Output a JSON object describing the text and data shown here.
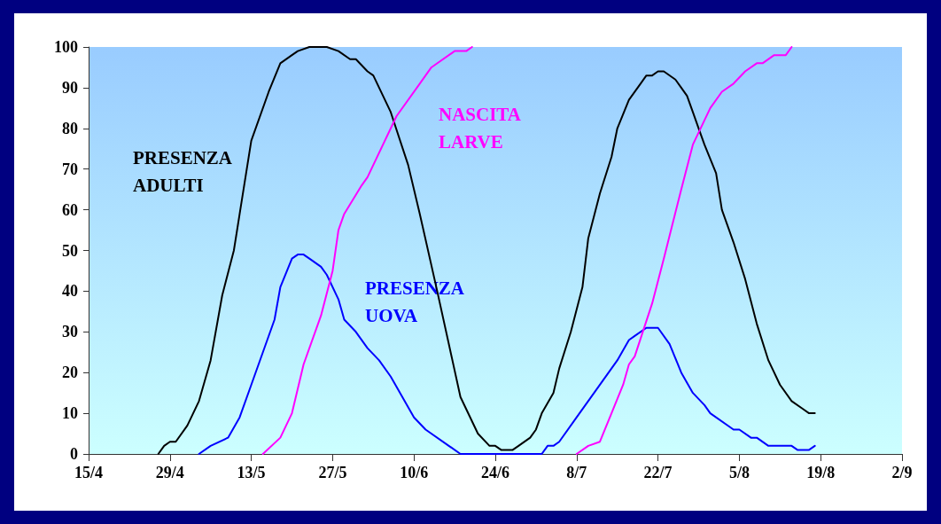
{
  "chart_data": {
    "type": "line",
    "xlim": [
      "--04-15",
      "--09-02"
    ],
    "xticks": [
      {
        "value": "--04-15",
        "label": "15/4"
      },
      {
        "value": "--04-29",
        "label": "29/4"
      },
      {
        "value": "--05-13",
        "label": "13/5"
      },
      {
        "value": "--05-27",
        "label": "27/5"
      },
      {
        "value": "--06-10",
        "label": "10/6"
      },
      {
        "value": "--06-24",
        "label": "24/6"
      },
      {
        "value": "--07-08",
        "label": "8/7"
      },
      {
        "value": "--07-22",
        "label": "22/7"
      },
      {
        "value": "--08-05",
        "label": "5/8"
      },
      {
        "value": "--08-19",
        "label": "19/8"
      },
      {
        "value": "--09-02",
        "label": "2/9"
      }
    ],
    "ylim": [
      0,
      100
    ],
    "yticks": [
      0,
      10,
      20,
      30,
      40,
      50,
      60,
      70,
      80,
      90,
      100
    ],
    "series": [
      {
        "name": "PRESENZA ADULTI",
        "color": "#000000",
        "x": [
          "--04-27",
          "--04-28",
          "--04-29",
          "--04-30",
          "--05-02",
          "--05-04",
          "--05-06",
          "--05-08",
          "--05-10",
          "--05-11",
          "--05-13",
          "--05-16",
          "--05-18",
          "--05-20",
          "--05-21",
          "--05-23",
          "--05-26",
          "--05-28",
          "--05-30",
          "--05-31",
          "--06-02",
          "--06-03",
          "--06-06",
          "--06-09",
          "--06-11",
          "--06-14",
          "--06-16",
          "--06-18",
          "--06-21",
          "--06-23",
          "--06-24",
          "--06-25",
          "--06-27",
          "--06-28",
          "--06-30",
          "--07-01",
          "--07-02",
          "--07-04",
          "--07-05",
          "--07-07",
          "--07-09",
          "--07-10",
          "--07-12",
          "--07-14",
          "--07-15",
          "--07-17",
          "--07-19",
          "--07-20",
          "--07-21",
          "--07-22",
          "--07-23",
          "--07-25",
          "--07-26",
          "--07-27",
          "--07-28",
          "--07-29",
          "--07-30",
          "--08-01",
          "--08-02",
          "--08-04",
          "--08-06",
          "--08-08",
          "--08-10",
          "--08-12",
          "--08-14",
          "--08-16",
          "--08-17",
          "--08-18"
        ],
        "values": [
          0,
          2,
          3,
          3,
          7,
          13,
          23,
          39,
          50,
          59,
          77,
          89,
          96,
          98,
          99,
          100,
          100,
          99,
          97,
          97,
          94,
          93,
          84,
          71,
          59,
          40,
          27,
          14,
          5,
          2,
          2,
          1,
          1,
          2,
          4,
          6,
          10,
          15,
          21,
          30,
          41,
          53,
          64,
          73,
          80,
          87,
          91,
          93,
          93,
          94,
          94,
          92,
          90,
          88,
          84,
          80,
          76,
          69,
          60,
          52,
          43,
          32,
          23,
          17,
          13,
          11,
          10,
          10
        ]
      },
      {
        "name": "PRESENZA UOVA",
        "color": "#0000ff",
        "x": [
          "--05-04",
          "--05-06",
          "--05-09",
          "--05-11",
          "--05-13",
          "--05-15",
          "--05-17",
          "--05-18",
          "--05-20",
          "--05-21",
          "--05-22",
          "--05-23",
          "--05-25",
          "--05-26",
          "--05-28",
          "--05-29",
          "--05-31",
          "--06-02",
          "--06-04",
          "--06-06",
          "--06-08",
          "--06-10",
          "--06-12",
          "--06-16",
          "--06-18",
          "--07-02",
          "--07-03",
          "--07-04",
          "--07-05",
          "--07-08",
          "--07-11",
          "--07-15",
          "--07-17",
          "--07-18",
          "--07-20",
          "--07-22",
          "--07-24",
          "--07-26",
          "--07-28",
          "--07-30",
          "--07-31",
          "--08-04",
          "--08-05",
          "--08-07",
          "--08-08",
          "--08-10",
          "--08-14",
          "--08-15",
          "--08-17",
          "--08-18"
        ],
        "values": [
          0,
          2,
          4,
          9,
          17,
          25,
          33,
          41,
          48,
          49,
          49,
          48,
          46,
          44,
          38,
          33,
          30,
          26,
          23,
          19,
          14,
          9,
          6,
          2,
          0,
          0,
          2,
          2,
          3,
          9,
          15,
          23,
          28,
          29,
          31,
          31,
          27,
          20,
          15,
          12,
          10,
          6,
          6,
          4,
          4,
          2,
          2,
          1,
          1,
          2
        ]
      },
      {
        "name": "NASCITA LARVE",
        "color": "#ff00ff",
        "x": [
          "--05-15",
          "--05-18",
          "--05-20",
          "--05-22",
          "--05-25",
          "--05-27",
          "--05-28",
          "--05-29",
          "--06-01",
          "--06-02",
          "--06-07",
          "--06-11",
          "--06-13",
          "--06-17",
          "--06-19",
          "--06-20",
          "--06-29",
          "--07-08",
          "--07-10",
          "--07-12",
          "--07-14",
          "--07-16",
          "--07-17",
          "--07-18",
          "--07-21",
          "--07-23",
          "--07-26",
          "--07-28",
          "--07-31",
          "--08-02",
          "--08-04",
          "--08-06",
          "--08-08",
          "--08-09",
          "--08-11",
          "--08-13",
          "--08-14"
        ],
        "values": [
          0,
          4,
          10,
          22,
          34,
          45,
          55,
          59,
          66,
          68,
          83,
          91,
          95,
          99,
          99,
          100,
          null,
          0,
          2,
          3,
          10,
          17,
          22,
          24,
          37,
          48,
          65,
          76,
          85,
          89,
          91,
          94,
          96,
          96,
          98,
          98,
          100
        ]
      }
    ]
  }
}
